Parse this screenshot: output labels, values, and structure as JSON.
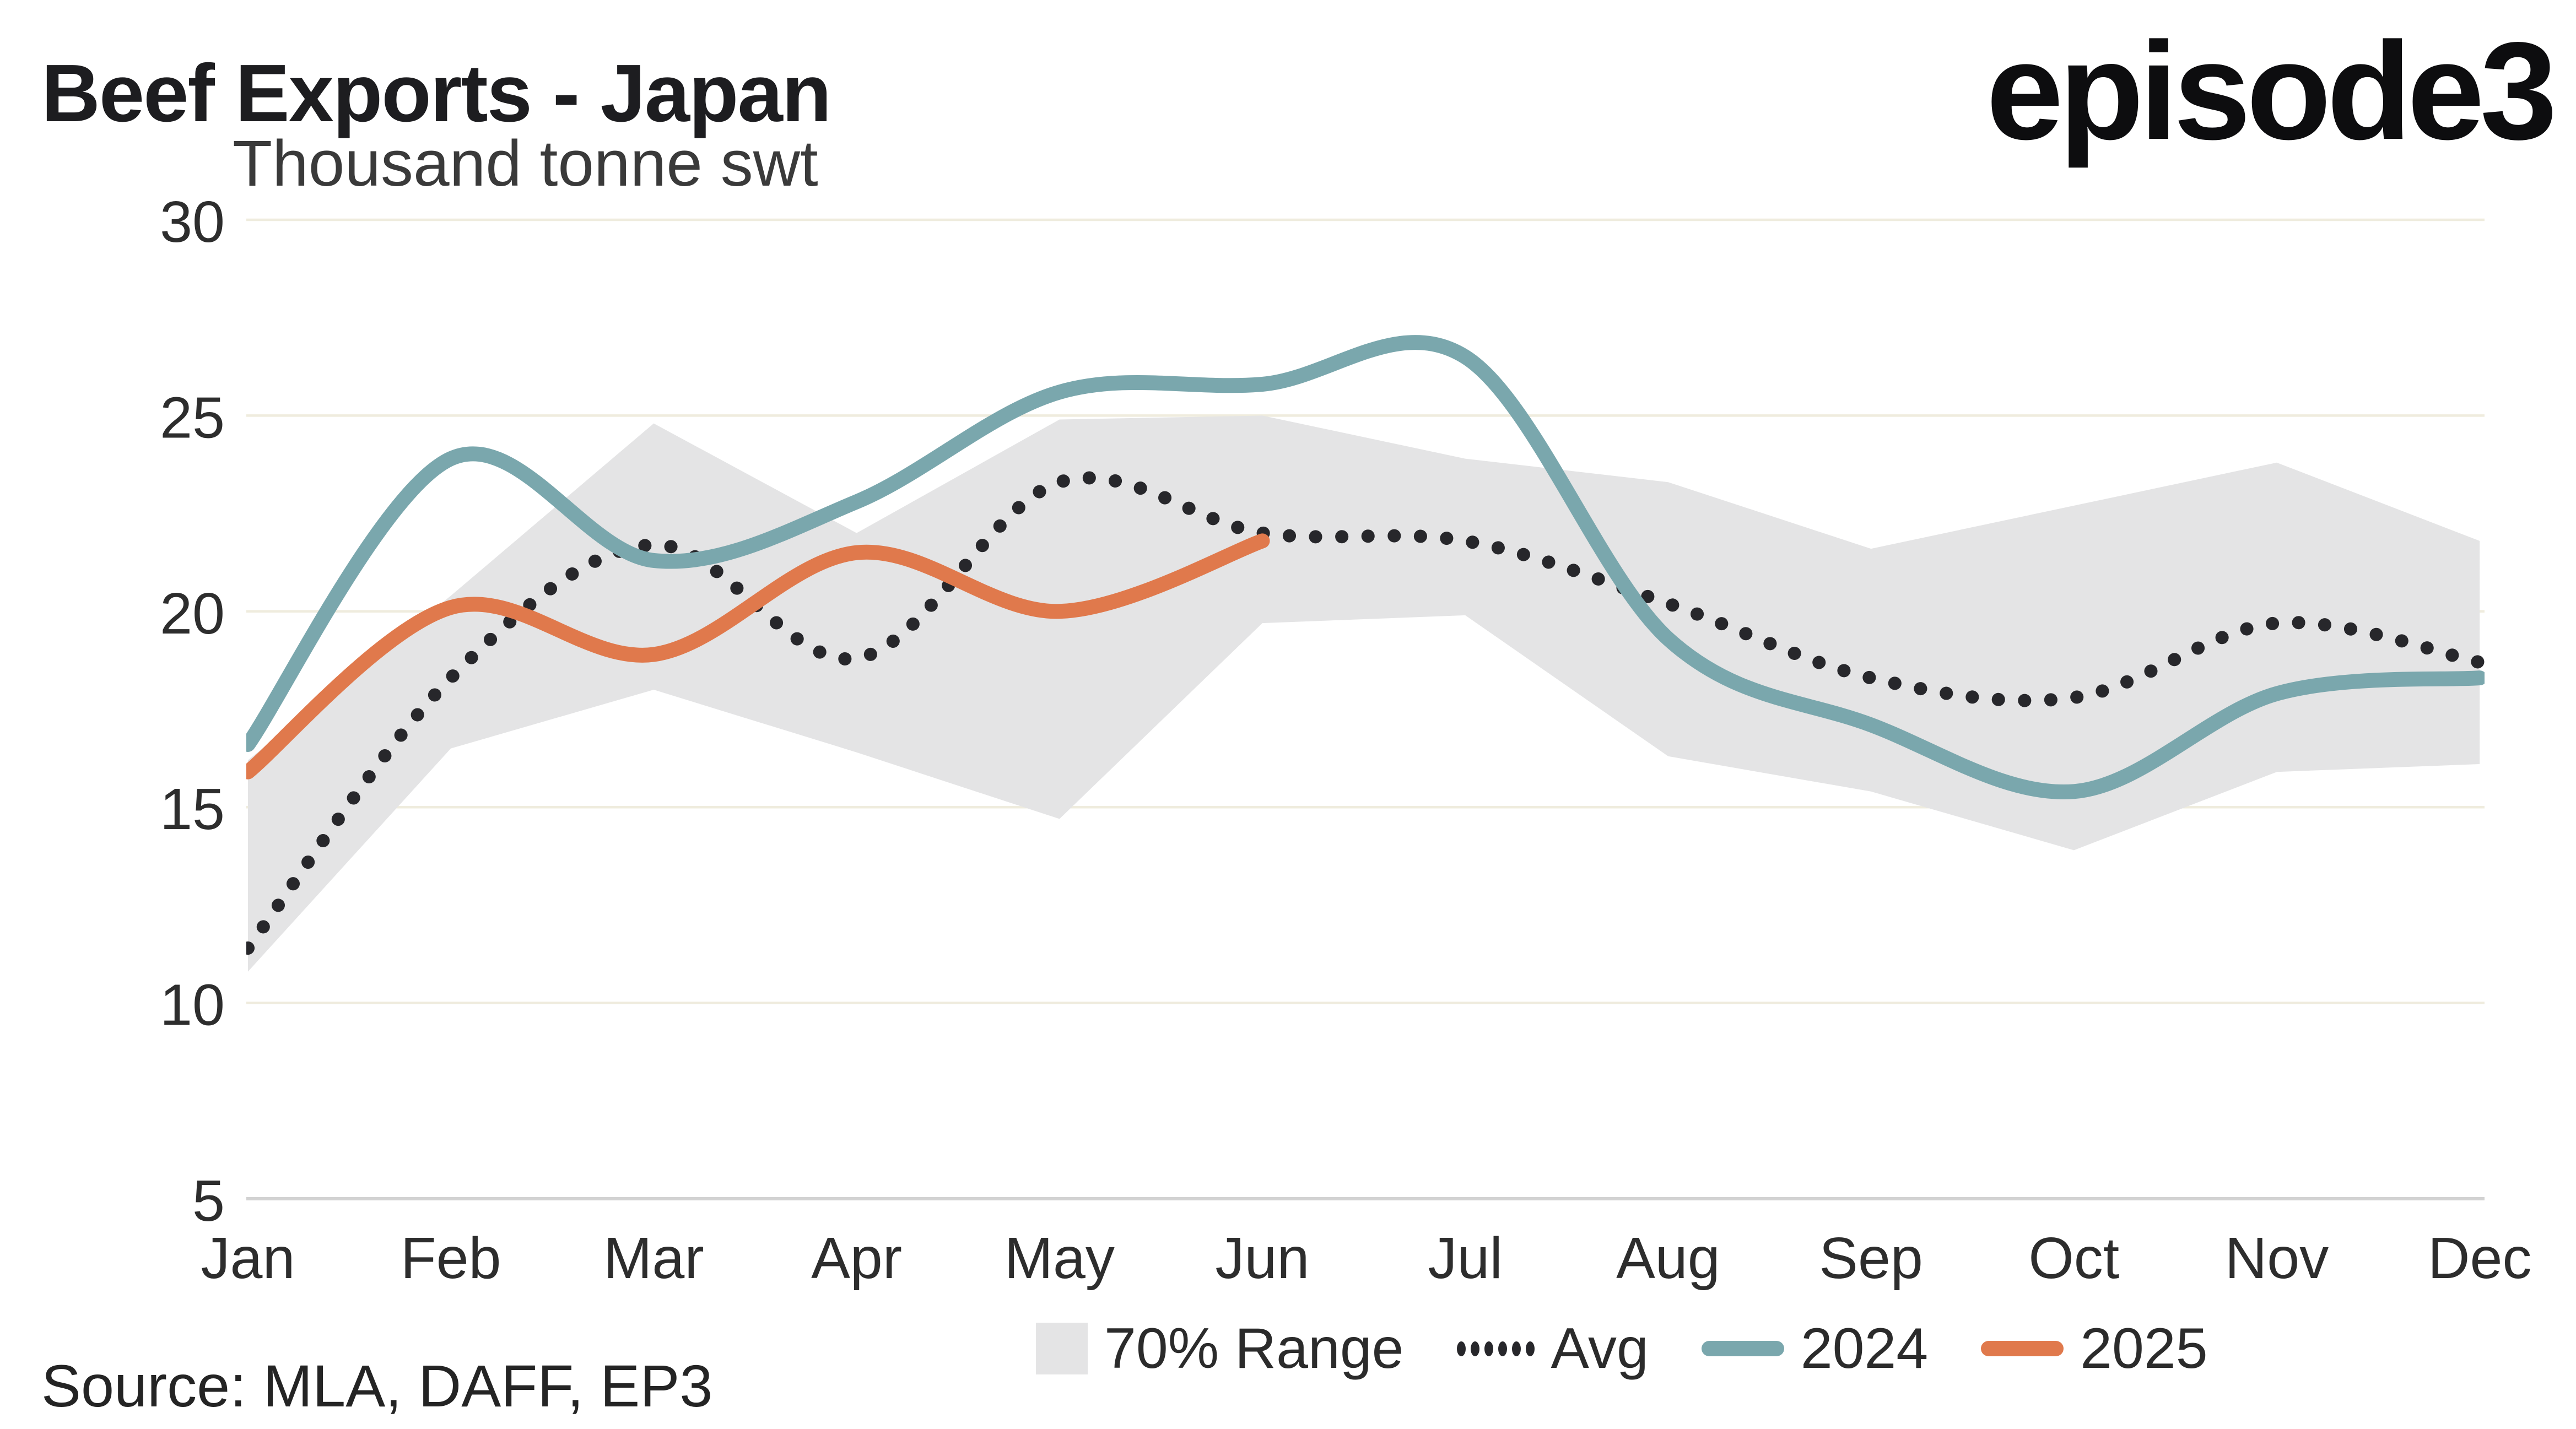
{
  "header": {
    "title": "Beef Exports - Japan",
    "subtitle": "Thousand tonne swt",
    "logo": "episode3"
  },
  "source": "Source: MLA, DAFF, EP3",
  "legend": {
    "band_label": "70% Range",
    "avg_label": "Avg",
    "y2024_label": "2024",
    "y2025_label": "2025"
  },
  "colors": {
    "teal_2024": "#7AA7AD",
    "orange_2025": "#E0794C",
    "avg_dots": "#27272B",
    "band": "#E4E4E5",
    "gridline": "#EFECDE",
    "axis_line": "#D2D2D2",
    "tick_label": "#2d2d2d"
  },
  "chart_data": {
    "type": "line",
    "title": "Beef Exports - Japan",
    "xlabel": "",
    "ylabel": "Thousand tonne swt",
    "ylim": [
      5,
      30
    ],
    "yticks": [
      30,
      25,
      20,
      15,
      10,
      5
    ],
    "grid": "horizontal",
    "legend_position": "bottom",
    "categories": [
      "Jan",
      "Feb",
      "Mar",
      "Apr",
      "May",
      "Jun",
      "Jul",
      "Aug",
      "Sep",
      "Oct",
      "Nov",
      "Dec"
    ],
    "band": {
      "name": "70% Range",
      "upper": [
        16.2,
        20.4,
        24.8,
        22.0,
        24.9,
        25.0,
        23.9,
        23.3,
        21.6,
        22.7,
        23.8,
        21.8
      ],
      "lower": [
        10.8,
        16.5,
        18.0,
        16.4,
        14.7,
        19.7,
        19.9,
        16.3,
        15.4,
        13.9,
        15.9,
        16.1
      ]
    },
    "series": [
      {
        "name": "Avg",
        "style": "dotted",
        "color": "#27272B",
        "values": [
          11.4,
          18.3,
          21.7,
          18.8,
          23.3,
          22.0,
          21.8,
          20.2,
          18.3,
          17.8,
          19.7,
          18.7
        ]
      },
      {
        "name": "2024",
        "style": "solid",
        "color": "#7AA7AD",
        "values": [
          16.6,
          23.9,
          21.3,
          22.8,
          25.6,
          25.8,
          26.5,
          19.3,
          17.1,
          15.4,
          17.9,
          18.3
        ]
      },
      {
        "name": "2025",
        "style": "solid",
        "color": "#E0794C",
        "values": [
          15.9,
          20.1,
          18.9,
          21.5,
          20.0,
          21.8
        ]
      }
    ]
  }
}
